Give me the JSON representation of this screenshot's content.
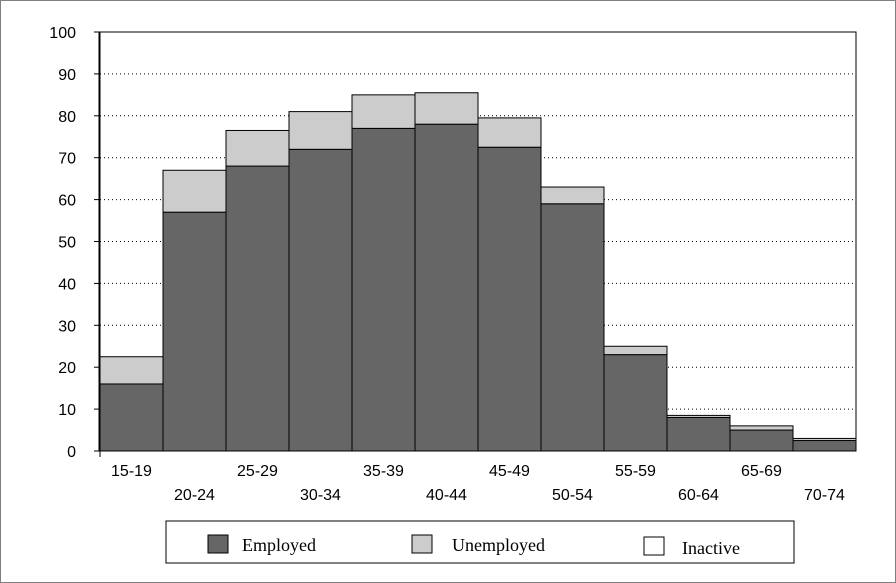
{
  "chart_data": {
    "type": "bar",
    "stacked": true,
    "categories": [
      "15-19",
      "20-24",
      "25-29",
      "30-34",
      "35-39",
      "40-44",
      "45-49",
      "50-54",
      "55-59",
      "60-64",
      "65-69",
      "70-74"
    ],
    "series": [
      {
        "name": "Employed",
        "color": "#666666",
        "values": [
          16,
          57,
          68,
          72,
          77,
          78,
          72.5,
          59,
          23,
          8,
          5,
          2.5
        ]
      },
      {
        "name": "Unemployed",
        "color": "#cccccc",
        "values": [
          6.5,
          10,
          8.5,
          9,
          8,
          7.5,
          7,
          4,
          2,
          0.5,
          1,
          0.5
        ]
      },
      {
        "name": "Inactive",
        "color": "#ffffff",
        "values": [
          0,
          0,
          0,
          0,
          0,
          0,
          0,
          0,
          0,
          0,
          0,
          0
        ]
      }
    ],
    "ylim": [
      0,
      100
    ],
    "yticks": [
      "0",
      "10",
      "20",
      "30",
      "40",
      "50",
      "60",
      "70",
      "80",
      "90",
      "100"
    ],
    "grid": "horizontal-dotted",
    "legend_position": "bottom"
  }
}
